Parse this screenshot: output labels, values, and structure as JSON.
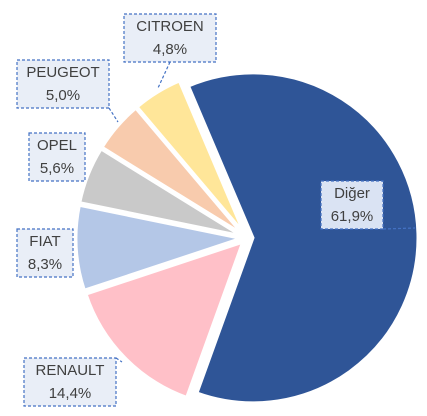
{
  "chart_data": {
    "type": "pie",
    "categories": [
      "Diğer",
      "RENAULT",
      "FIAT",
      "OPEL",
      "PEUGEOT",
      "CITROEN"
    ],
    "values": [
      61.9,
      14.4,
      8.3,
      5.6,
      5.0,
      4.8
    ],
    "value_labels": [
      "61,9%",
      "14,4%",
      "8,3%",
      "5,6%",
      "5,0%",
      "4,8%"
    ],
    "colors": [
      "#2f5597",
      "#ffc0c8",
      "#b4c7e7",
      "#c9c9c9",
      "#f8cbad",
      "#ffe699"
    ]
  }
}
